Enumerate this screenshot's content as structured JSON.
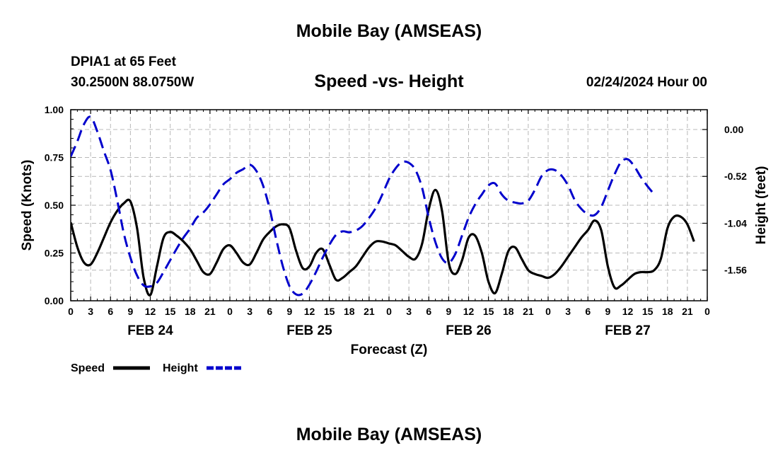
{
  "header": {
    "main_title": "Mobile Bay (AMSEAS)",
    "station": "DPIA1 at 65 Feet",
    "coords": "30.2500N  88.0750W",
    "subtitle": "Speed -vs- Height",
    "datetime": "02/24/2024 Hour 00",
    "bottom_title": "Mobile Bay (AMSEAS)"
  },
  "chart_data": {
    "type": "line",
    "title": "Speed -vs- Height",
    "xlabel": "Forecast (Z)",
    "ylabel": "Speed (Knots)",
    "y2label": "Height (feet)",
    "xlim": [
      0,
      96
    ],
    "ylim": [
      0,
      1
    ],
    "y2lim": [
      -1.9,
      0.22
    ],
    "x_tick_step": 3,
    "x_tick_labels": [
      "0",
      "3",
      "6",
      "9",
      "12",
      "15",
      "18",
      "21",
      "0",
      "3",
      "6",
      "9",
      "12",
      "15",
      "18",
      "21",
      "0",
      "3",
      "6",
      "9",
      "12",
      "15",
      "18",
      "21",
      "0",
      "3",
      "6",
      "9",
      "12",
      "15",
      "18",
      "21",
      "0"
    ],
    "y_ticks": [
      0,
      0.25,
      0.5,
      0.75,
      1.0
    ],
    "y_tick_labels": [
      "0.00",
      "0.25",
      "0.50",
      "0.75",
      "1.00"
    ],
    "y2_ticks": [
      0,
      -0.52,
      -1.04,
      -1.56
    ],
    "y2_tick_labels": [
      "0.00",
      "-0.52",
      "-1.04",
      "-1.56"
    ],
    "day_labels": [
      {
        "label": "FEB 24",
        "hour": 12
      },
      {
        "label": "FEB 25",
        "hour": 36
      },
      {
        "label": "FEB 26",
        "hour": 60
      },
      {
        "label": "FEB 27",
        "hour": 84
      }
    ],
    "grid": true,
    "legend_position": "bottom-left",
    "series": [
      {
        "name": "Speed",
        "axis": "left",
        "color": "#000000",
        "style": "solid",
        "points": [
          [
            0,
            0.41
          ],
          [
            1,
            0.28
          ],
          [
            2,
            0.2
          ],
          [
            3,
            0.19
          ],
          [
            4,
            0.25
          ],
          [
            5,
            0.33
          ],
          [
            6,
            0.41
          ],
          [
            7,
            0.47
          ],
          [
            8,
            0.51
          ],
          [
            9,
            0.52
          ],
          [
            10,
            0.38
          ],
          [
            11,
            0.12
          ],
          [
            12,
            0.03
          ],
          [
            13,
            0.18
          ],
          [
            14,
            0.33
          ],
          [
            15,
            0.36
          ],
          [
            16,
            0.34
          ],
          [
            17,
            0.31
          ],
          [
            18,
            0.27
          ],
          [
            19,
            0.21
          ],
          [
            20,
            0.15
          ],
          [
            21,
            0.14
          ],
          [
            22,
            0.2
          ],
          [
            23,
            0.27
          ],
          [
            24,
            0.29
          ],
          [
            25,
            0.25
          ],
          [
            26,
            0.2
          ],
          [
            27,
            0.19
          ],
          [
            28,
            0.25
          ],
          [
            29,
            0.32
          ],
          [
            30,
            0.36
          ],
          [
            31,
            0.39
          ],
          [
            32,
            0.4
          ],
          [
            33,
            0.38
          ],
          [
            34,
            0.26
          ],
          [
            35,
            0.17
          ],
          [
            36,
            0.18
          ],
          [
            37,
            0.25
          ],
          [
            38,
            0.27
          ],
          [
            39,
            0.19
          ],
          [
            40,
            0.11
          ],
          [
            41,
            0.12
          ],
          [
            42,
            0.15
          ],
          [
            43,
            0.18
          ],
          [
            44,
            0.23
          ],
          [
            45,
            0.28
          ],
          [
            46,
            0.31
          ],
          [
            47,
            0.31
          ],
          [
            48,
            0.3
          ],
          [
            49,
            0.29
          ],
          [
            50,
            0.26
          ],
          [
            51,
            0.23
          ],
          [
            52,
            0.22
          ],
          [
            53,
            0.3
          ],
          [
            54,
            0.48
          ],
          [
            55,
            0.58
          ],
          [
            56,
            0.47
          ],
          [
            57,
            0.2
          ],
          [
            58,
            0.14
          ],
          [
            59,
            0.21
          ],
          [
            60,
            0.33
          ],
          [
            61,
            0.34
          ],
          [
            62,
            0.25
          ],
          [
            63,
            0.1
          ],
          [
            64,
            0.04
          ],
          [
            65,
            0.14
          ],
          [
            66,
            0.26
          ],
          [
            67,
            0.28
          ],
          [
            68,
            0.22
          ],
          [
            69,
            0.16
          ],
          [
            70,
            0.14
          ],
          [
            71,
            0.13
          ],
          [
            72,
            0.12
          ],
          [
            73,
            0.14
          ],
          [
            74,
            0.18
          ],
          [
            75,
            0.23
          ],
          [
            76,
            0.28
          ],
          [
            77,
            0.33
          ],
          [
            78,
            0.37
          ],
          [
            79,
            0.42
          ],
          [
            80,
            0.37
          ],
          [
            81,
            0.18
          ],
          [
            82,
            0.07
          ],
          [
            83,
            0.08
          ],
          [
            84,
            0.11
          ],
          [
            85,
            0.14
          ],
          [
            86,
            0.15
          ],
          [
            87,
            0.15
          ],
          [
            88,
            0.16
          ],
          [
            89,
            0.22
          ],
          [
            90,
            0.38
          ],
          [
            91,
            0.44
          ],
          [
            92,
            0.44
          ],
          [
            93,
            0.4
          ],
          [
            94,
            0.31
          ]
        ]
      },
      {
        "name": "Height",
        "axis": "right",
        "color": "#0000cc",
        "style": "dashed",
        "points": [
          [
            0,
            -0.3
          ],
          [
            1,
            -0.13
          ],
          [
            2,
            0.06
          ],
          [
            3,
            0.14
          ],
          [
            4,
            -0.02
          ],
          [
            5,
            -0.24
          ],
          [
            6,
            -0.45
          ],
          [
            7,
            -0.78
          ],
          [
            8,
            -1.15
          ],
          [
            9,
            -1.42
          ],
          [
            10,
            -1.62
          ],
          [
            11,
            -1.73
          ],
          [
            12,
            -1.74
          ],
          [
            13,
            -1.7
          ],
          [
            14,
            -1.58
          ],
          [
            15,
            -1.45
          ],
          [
            16,
            -1.32
          ],
          [
            17,
            -1.2
          ],
          [
            18,
            -1.1
          ],
          [
            19,
            -0.98
          ],
          [
            20,
            -0.92
          ],
          [
            21,
            -0.83
          ],
          [
            22,
            -0.72
          ],
          [
            23,
            -0.61
          ],
          [
            24,
            -0.55
          ],
          [
            25,
            -0.48
          ],
          [
            26,
            -0.44
          ],
          [
            27,
            -0.39
          ],
          [
            28,
            -0.46
          ],
          [
            29,
            -0.62
          ],
          [
            30,
            -0.88
          ],
          [
            31,
            -1.22
          ],
          [
            32,
            -1.52
          ],
          [
            33,
            -1.74
          ],
          [
            34,
            -1.83
          ],
          [
            35,
            -1.82
          ],
          [
            36,
            -1.72
          ],
          [
            37,
            -1.58
          ],
          [
            38,
            -1.42
          ],
          [
            39,
            -1.28
          ],
          [
            40,
            -1.17
          ],
          [
            41,
            -1.13
          ],
          [
            42,
            -1.14
          ],
          [
            43,
            -1.12
          ],
          [
            44,
            -1.07
          ],
          [
            45,
            -0.98
          ],
          [
            46,
            -0.87
          ],
          [
            47,
            -0.72
          ],
          [
            48,
            -0.55
          ],
          [
            49,
            -0.43
          ],
          [
            50,
            -0.36
          ],
          [
            51,
            -0.37
          ],
          [
            52,
            -0.45
          ],
          [
            53,
            -0.65
          ],
          [
            54,
            -0.98
          ],
          [
            55,
            -1.25
          ],
          [
            56,
            -1.43
          ],
          [
            57,
            -1.48
          ],
          [
            58,
            -1.38
          ],
          [
            59,
            -1.18
          ],
          [
            60,
            -0.98
          ],
          [
            61,
            -0.83
          ],
          [
            62,
            -0.72
          ],
          [
            63,
            -0.62
          ],
          [
            64,
            -0.6
          ],
          [
            65,
            -0.72
          ],
          [
            66,
            -0.79
          ],
          [
            67,
            -0.81
          ],
          [
            68,
            -0.82
          ],
          [
            69,
            -0.79
          ],
          [
            70,
            -0.67
          ],
          [
            71,
            -0.52
          ],
          [
            72,
            -0.45
          ],
          [
            73,
            -0.45
          ],
          [
            74,
            -0.51
          ],
          [
            75,
            -0.62
          ],
          [
            76,
            -0.78
          ],
          [
            77,
            -0.88
          ],
          [
            78,
            -0.94
          ],
          [
            79,
            -0.95
          ],
          [
            80,
            -0.86
          ],
          [
            81,
            -0.68
          ],
          [
            82,
            -0.5
          ],
          [
            83,
            -0.36
          ],
          [
            84,
            -0.33
          ],
          [
            85,
            -0.41
          ],
          [
            86,
            -0.53
          ],
          [
            87,
            -0.63
          ],
          [
            88,
            -0.72
          ]
        ]
      }
    ]
  }
}
